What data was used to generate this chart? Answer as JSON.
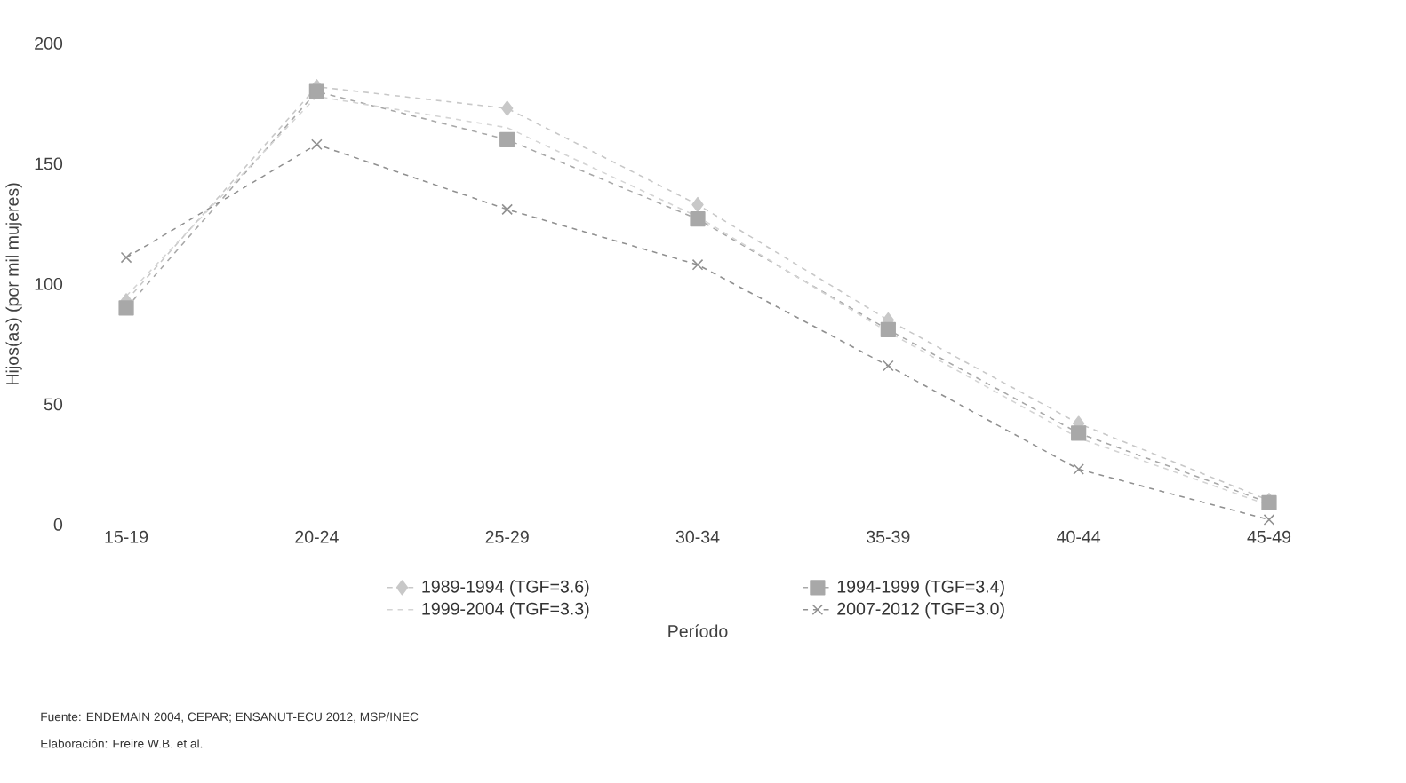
{
  "chart_data": {
    "type": "line",
    "xlabel": "Período",
    "ylabel": "Hijos(as) (por mil mujeres)",
    "categories": [
      "15-19",
      "20-24",
      "25-29",
      "30-34",
      "35-39",
      "40-44",
      "45-49"
    ],
    "ylim": [
      0,
      200
    ],
    "yticks": [
      0,
      50,
      100,
      150,
      200
    ],
    "series": [
      {
        "name": "1989-1994 (TGF=3.6)",
        "color": "#c8c8c8",
        "marker": "diamond",
        "values": [
          93,
          182,
          173,
          133,
          85,
          42,
          10
        ]
      },
      {
        "name": "1994-1999 (TGF=3.4)",
        "color": "#a8a8a8",
        "marker": "square",
        "values": [
          90,
          180,
          160,
          127,
          81,
          38,
          9
        ]
      },
      {
        "name": "1999-2004 (TGF=3.3)",
        "color": "#d4d4d4",
        "marker": "none",
        "values": [
          95,
          178,
          165,
          128,
          80,
          36,
          8
        ]
      },
      {
        "name": "2007-2012 (TGF=3.0)",
        "color": "#909090",
        "marker": "cross",
        "values": [
          111,
          158,
          131,
          108,
          66,
          23,
          2
        ]
      }
    ],
    "line_style": "dashed",
    "legend": "bottom",
    "grid": false,
    "annotations": [
      "Fuente: ENDEMAIN 2004, CEPAR; ENSANUT-ECU 2012, MSP/INEC",
      "Elaboración: Freire W.B. et al."
    ]
  }
}
